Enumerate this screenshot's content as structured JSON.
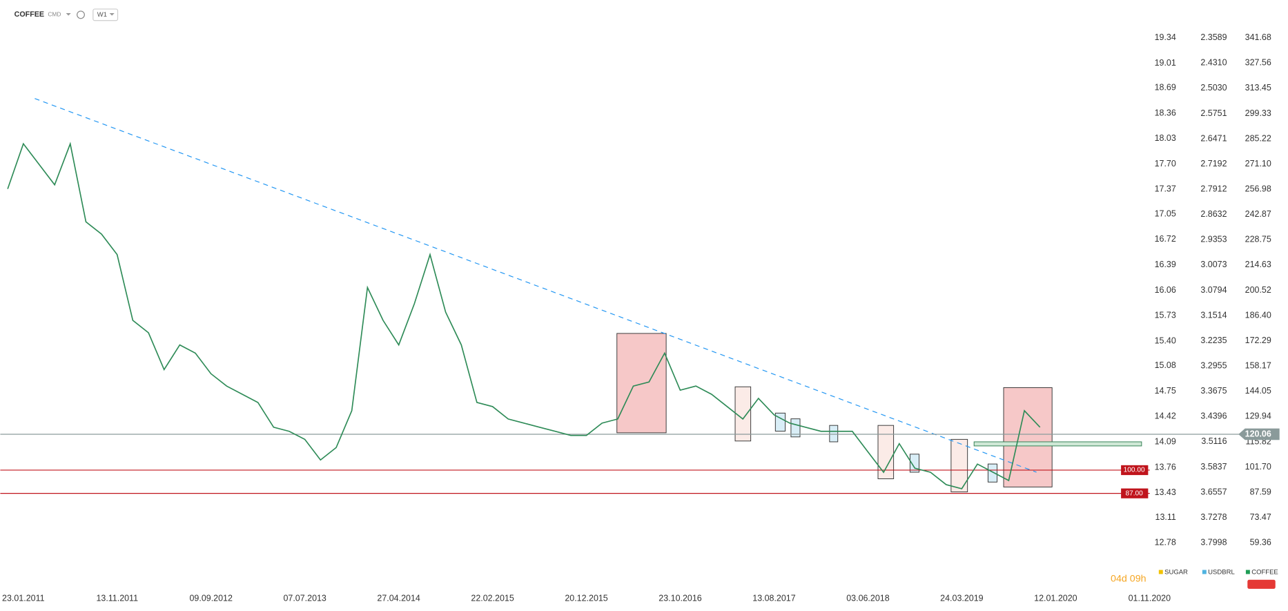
{
  "header": {
    "symbol": "COFFEE",
    "exchange": "CMD",
    "interval": "W1"
  },
  "countdown": "04d 09h",
  "legend": [
    {
      "name": "SUGAR",
      "color": "#f2c200"
    },
    {
      "name": "USDBRL",
      "color": "#4fb3e0"
    },
    {
      "name": "COFFEE",
      "color": "#1f9d55"
    }
  ],
  "chart_data": {
    "type": "line",
    "categories": [
      null,
      "23.01.2011",
      null,
      null,
      null,
      null,
      null,
      "13.11.2011",
      null,
      null,
      null,
      null,
      null,
      "09.09.2012",
      null,
      null,
      null,
      null,
      null,
      "07.07.2013",
      null,
      null,
      null,
      null,
      null,
      "27.04.2014",
      null,
      null,
      null,
      null,
      null,
      "22.02.2015",
      null,
      null,
      null,
      null,
      null,
      "20.12.2015",
      null,
      null,
      null,
      null,
      null,
      "23.10.2016",
      null,
      null,
      null,
      null,
      null,
      "13.08.2017",
      null,
      null,
      null,
      null,
      null,
      "03.06.2018",
      null,
      null,
      null,
      null,
      null,
      "24.03.2019",
      null,
      null,
      null,
      null,
      null,
      "12.01.2020",
      null,
      null,
      null,
      null,
      null,
      "01.11.2020"
    ],
    "series": [
      {
        "name": "COFFEE",
        "color": "#2e8b57",
        "values": [
          257.2,
          282.4,
          271,
          259.5,
          282.4,
          238.8,
          231.9,
          220.5,
          183.7,
          176.8,
          156.2,
          170,
          165.4,
          153.9,
          147,
          142.4,
          137.8,
          124,
          121.7,
          117.2,
          105.7,
          112.6,
          133.2,
          202.1,
          183.7,
          170,
          193,
          220.5,
          188.3,
          170,
          137.8,
          135.5,
          128.6,
          126.3,
          124,
          121.7,
          119.4,
          119.4,
          126.3,
          128.6,
          147,
          149.3,
          165.4,
          144.7,
          147,
          142.4,
          135.5,
          128.6,
          140.1,
          130.9,
          126.3,
          124,
          121.7,
          121.7,
          121.7,
          110.2,
          98.8,
          114.8,
          101.1,
          98.8,
          91.9,
          89.6,
          103.4,
          98.8,
          94.2,
          133.2,
          124,
          null,
          null,
          null,
          null,
          null,
          null,
          null
        ]
      }
    ],
    "ylim": [
      59.36,
      341.68
    ],
    "yticks": [
      341.68,
      327.56,
      313.45,
      299.33,
      285.22,
      {
        "value": 271.1,
        "label": "271.10"
      },
      256.98,
      242.87,
      228.75,
      214.63,
      200.52,
      {
        "value": 186.4,
        "label": "186.40"
      },
      172.29,
      158.17,
      144.05,
      129.94,
      115.82,
      {
        "value": 101.7,
        "label": "101.70"
      },
      87.59,
      73.47,
      59.36
    ],
    "y2lim": [
      12.78,
      19.34
    ],
    "y2ticks": [
      19.34,
      19.01,
      18.69,
      18.36,
      18.03,
      {
        "value": 17.7,
        "label": "17.70"
      },
      17.37,
      17.05,
      16.72,
      16.39,
      16.06,
      15.73,
      {
        "value": 15.4,
        "label": "15.40"
      },
      15.08,
      14.75,
      14.42,
      14.09,
      13.76,
      13.43,
      13.11,
      12.78
    ],
    "y3lim": [
      3.7998,
      2.3589
    ],
    "y3ticks": [
      2.3589,
      {
        "value": 2.431,
        "label": "2.4310"
      },
      {
        "value": 2.503,
        "label": "2.5030"
      },
      2.5751,
      2.6471,
      2.7192,
      2.7912,
      2.8632,
      2.9353,
      3.0073,
      3.0794,
      3.1514,
      3.2235,
      3.2955,
      3.3675,
      3.4396,
      3.5116,
      3.5837,
      3.6557,
      3.7278,
      3.7998
    ],
    "reference_lines": [
      {
        "value": 120.06,
        "color": "#8a9a9a"
      },
      {
        "value": 100,
        "label": "100.00",
        "color": "#c0141c"
      },
      {
        "value": 87,
        "label": "87.00",
        "color": "#c0141c"
      }
    ]
  }
}
